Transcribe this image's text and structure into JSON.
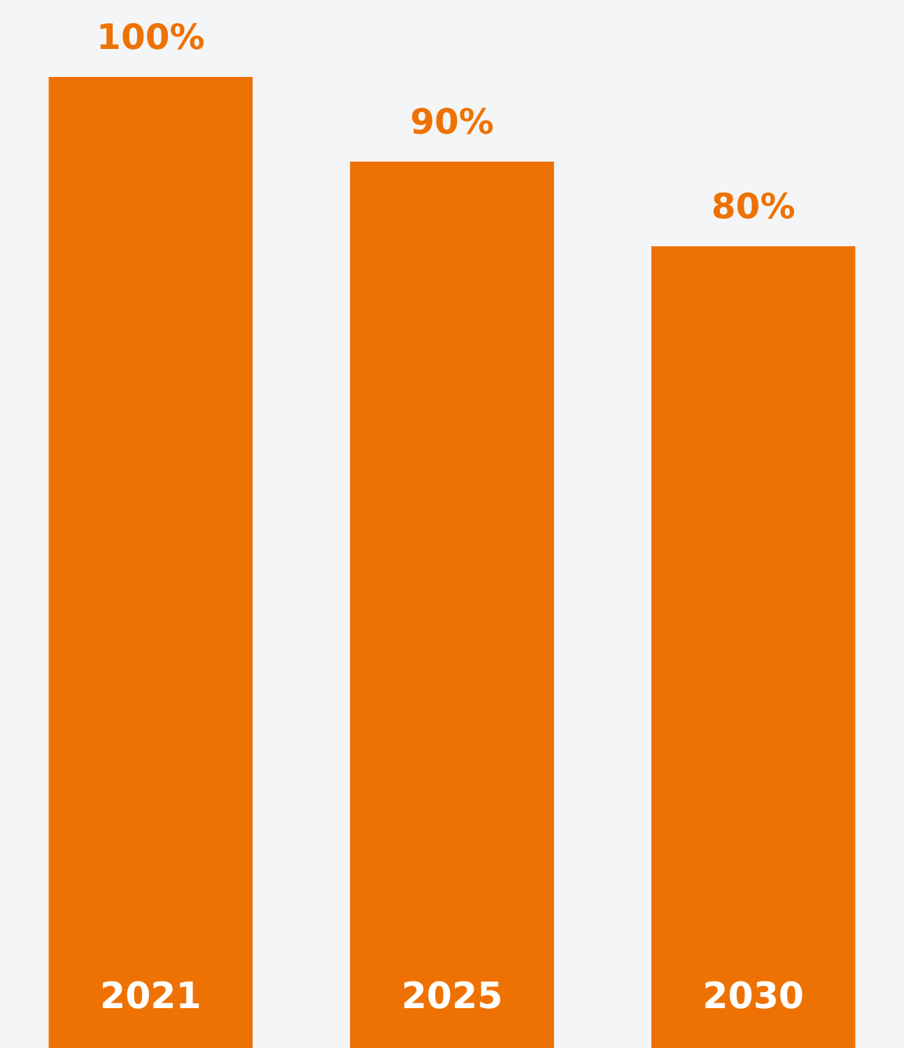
{
  "chart_data": {
    "type": "bar",
    "categories": [
      "2021",
      "2025",
      "2030"
    ],
    "values": [
      100,
      90,
      80
    ],
    "color": "#ee7203",
    "value_labels": [
      "100%",
      "90%",
      "80%"
    ]
  }
}
